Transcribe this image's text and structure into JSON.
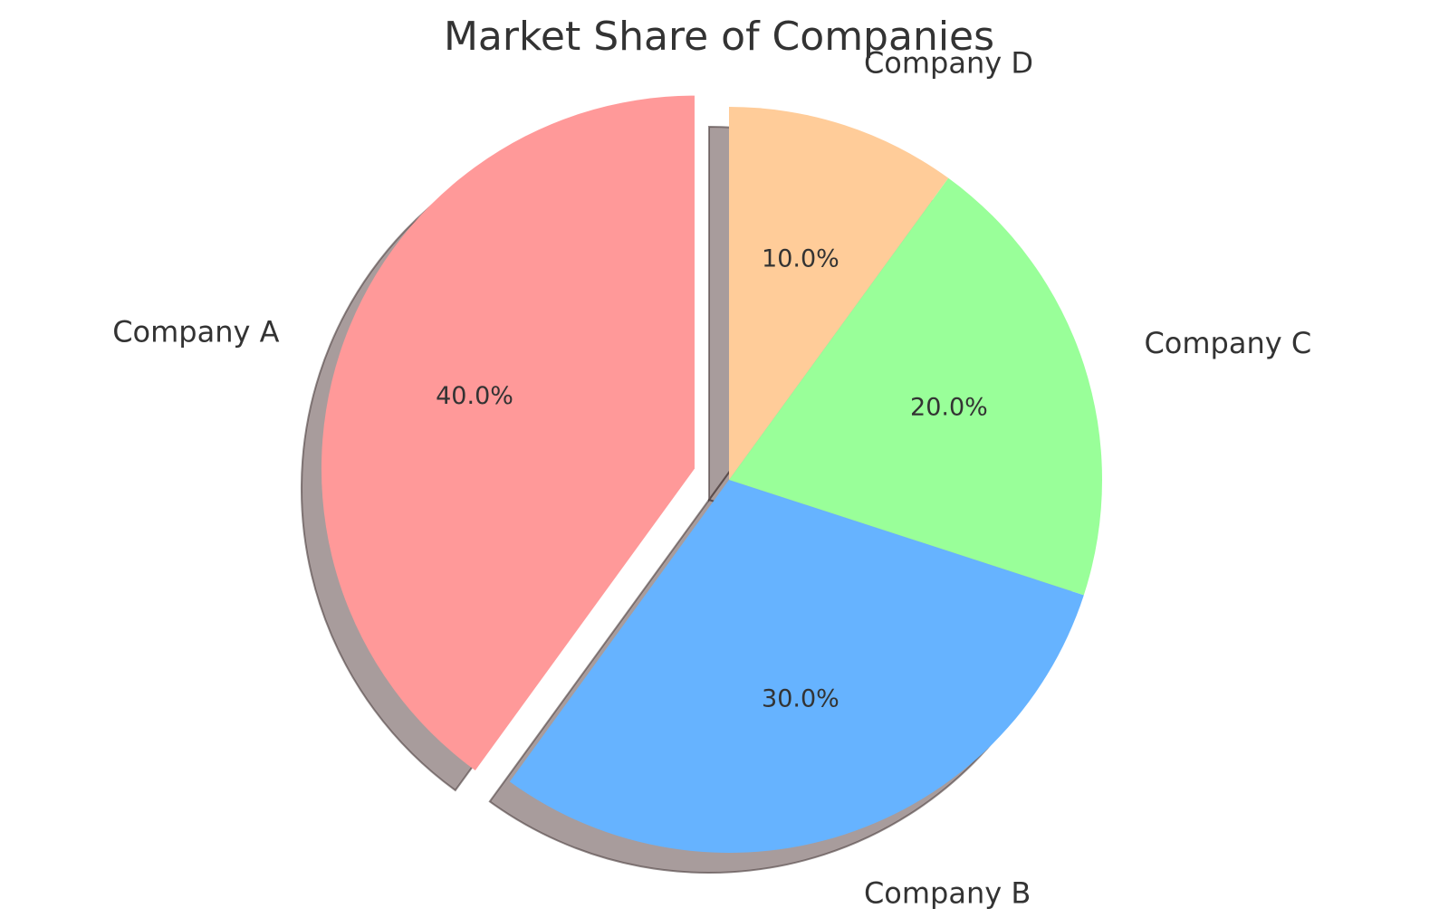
{
  "chart_data": {
    "type": "pie",
    "title": "Market Share of Companies",
    "start_angle": 90,
    "direction": "counterclockwise",
    "shadow": true,
    "slices": [
      {
        "label": "Company A",
        "value": 40,
        "pct_label": "40.0%",
        "color": "#ff9999",
        "exploded": true
      },
      {
        "label": "Company B",
        "value": 30,
        "pct_label": "30.0%",
        "color": "#66b3ff",
        "exploded": false
      },
      {
        "label": "Company C",
        "value": 20,
        "pct_label": "20.0%",
        "color": "#99ff99",
        "exploded": false
      },
      {
        "label": "Company D",
        "value": 10,
        "pct_label": "10.0%",
        "color": "#ffcc99",
        "exploded": false
      }
    ]
  }
}
